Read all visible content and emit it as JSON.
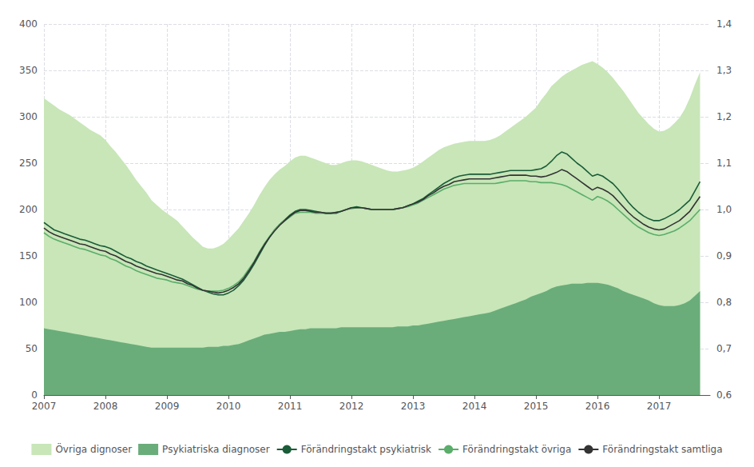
{
  "chart_data": {
    "type": "line",
    "xlim": [
      2007.0,
      2017.83
    ],
    "xticks": [
      2007,
      2008,
      2009,
      2010,
      2011,
      2012,
      2013,
      2014,
      2015,
      2016,
      2017
    ],
    "ylim": [
      0,
      400
    ],
    "yticks": [
      0,
      50,
      100,
      150,
      200,
      250,
      300,
      350,
      400
    ],
    "y2lim": [
      0.6,
      1.4
    ],
    "y2ticks": [
      {
        "value": 0.6,
        "label": "0,6"
      },
      {
        "value": 0.7,
        "label": "0,7"
      },
      {
        "value": 0.8,
        "label": "0,8"
      },
      {
        "value": 0.9,
        "label": "0,9"
      },
      {
        "value": 1.0,
        "label": "1,0"
      },
      {
        "value": 1.1,
        "label": "1,1"
      },
      {
        "value": 1.2,
        "label": "1,2"
      },
      {
        "value": 1.3,
        "label": "1,3"
      },
      {
        "value": 1.4,
        "label": "1,4"
      }
    ],
    "grid": true,
    "legend": "bottom",
    "x": [
      2007.0,
      2007.083,
      2007.167,
      2007.25,
      2007.333,
      2007.417,
      2007.5,
      2007.583,
      2007.667,
      2007.75,
      2007.833,
      2007.917,
      2008.0,
      2008.083,
      2008.167,
      2008.25,
      2008.333,
      2008.417,
      2008.5,
      2008.583,
      2008.667,
      2008.75,
      2008.833,
      2008.917,
      2009.0,
      2009.083,
      2009.167,
      2009.25,
      2009.333,
      2009.417,
      2009.5,
      2009.583,
      2009.667,
      2009.75,
      2009.833,
      2009.917,
      2010.0,
      2010.083,
      2010.167,
      2010.25,
      2010.333,
      2010.417,
      2010.5,
      2010.583,
      2010.667,
      2010.75,
      2010.833,
      2010.917,
      2011.0,
      2011.083,
      2011.167,
      2011.25,
      2011.333,
      2011.417,
      2011.5,
      2011.583,
      2011.667,
      2011.75,
      2011.833,
      2011.917,
      2012.0,
      2012.083,
      2012.167,
      2012.25,
      2012.333,
      2012.417,
      2012.5,
      2012.583,
      2012.667,
      2012.75,
      2012.833,
      2012.917,
      2013.0,
      2013.083,
      2013.167,
      2013.25,
      2013.333,
      2013.417,
      2013.5,
      2013.583,
      2013.667,
      2013.75,
      2013.833,
      2013.917,
      2014.0,
      2014.083,
      2014.167,
      2014.25,
      2014.333,
      2014.417,
      2014.5,
      2014.583,
      2014.667,
      2014.75,
      2014.833,
      2014.917,
      2015.0,
      2015.083,
      2015.167,
      2015.25,
      2015.333,
      2015.417,
      2015.5,
      2015.583,
      2015.667,
      2015.75,
      2015.833,
      2015.917,
      2016.0,
      2016.083,
      2016.167,
      2016.25,
      2016.333,
      2016.417,
      2016.5,
      2016.583,
      2016.667,
      2016.75,
      2016.833,
      2016.917,
      2017.0,
      2017.083,
      2017.167,
      2017.25,
      2017.333,
      2017.417,
      2017.5,
      2017.583,
      2017.667
    ],
    "series": [
      {
        "name": "Övriga dignoser",
        "type": "area",
        "color": "#c8e6b8",
        "values": [
          320,
          316,
          312,
          308,
          305,
          302,
          298,
          294,
          290,
          286,
          283,
          280,
          275,
          268,
          262,
          255,
          248,
          240,
          232,
          225,
          218,
          210,
          205,
          200,
          196,
          192,
          188,
          182,
          176,
          170,
          165,
          160,
          158,
          158,
          160,
          163,
          168,
          174,
          180,
          188,
          196,
          205,
          215,
          224,
          232,
          238,
          243,
          247,
          252,
          256,
          258,
          258,
          256,
          254,
          252,
          250,
          248,
          248,
          250,
          252,
          253,
          253,
          252,
          250,
          248,
          246,
          244,
          242,
          241,
          241,
          242,
          243,
          245,
          248,
          252,
          256,
          260,
          264,
          267,
          269,
          271,
          272,
          273,
          274,
          274,
          274,
          274,
          275,
          277,
          280,
          284,
          288,
          292,
          296,
          300,
          305,
          310,
          318,
          325,
          333,
          338,
          343,
          347,
          350,
          353,
          356,
          358,
          360,
          357,
          353,
          348,
          342,
          335,
          328,
          320,
          312,
          304,
          298,
          292,
          287,
          284,
          285,
          288,
          293,
          299,
          308,
          320,
          335,
          348
        ]
      },
      {
        "name": "Psykiatriska diagnoser",
        "type": "area",
        "color": "#6aad7a",
        "values": [
          72,
          71,
          70,
          69,
          68,
          67,
          66,
          65,
          64,
          63,
          62,
          61,
          60,
          59,
          58,
          57,
          56,
          55,
          54,
          53,
          52,
          51,
          51,
          51,
          51,
          51,
          51,
          51,
          51,
          51,
          51,
          51,
          52,
          52,
          52,
          53,
          53,
          54,
          55,
          57,
          59,
          61,
          63,
          65,
          66,
          67,
          68,
          68,
          69,
          70,
          71,
          71,
          72,
          72,
          72,
          72,
          72,
          72,
          73,
          73,
          73,
          73,
          73,
          73,
          73,
          73,
          73,
          73,
          73,
          74,
          74,
          74,
          75,
          75,
          76,
          77,
          78,
          79,
          80,
          81,
          82,
          83,
          84,
          85,
          86,
          87,
          88,
          89,
          91,
          93,
          95,
          97,
          99,
          101,
          103,
          106,
          108,
          110,
          112,
          115,
          117,
          118,
          119,
          120,
          120,
          120,
          121,
          121,
          121,
          120,
          119,
          117,
          115,
          112,
          110,
          108,
          106,
          104,
          102,
          99,
          97,
          96,
          96,
          96,
          97,
          99,
          102,
          107,
          112
        ]
      },
      {
        "name": "Förändringstakt psykiatrisk",
        "type": "line",
        "color": "#1a5c38",
        "values": [
          186,
          182,
          178,
          176,
          174,
          172,
          170,
          168,
          167,
          165,
          163,
          161,
          160,
          158,
          155,
          152,
          149,
          147,
          144,
          142,
          139,
          137,
          135,
          133,
          131,
          129,
          127,
          125,
          122,
          119,
          116,
          113,
          111,
          109,
          108,
          108,
          110,
          113,
          118,
          124,
          132,
          141,
          151,
          161,
          170,
          178,
          184,
          189,
          194,
          198,
          200,
          200,
          199,
          198,
          197,
          196,
          196,
          196,
          198,
          200,
          202,
          203,
          202,
          201,
          200,
          200,
          200,
          200,
          200,
          201,
          202,
          204,
          206,
          209,
          212,
          216,
          220,
          224,
          228,
          231,
          234,
          236,
          237,
          238,
          238,
          238,
          238,
          238,
          239,
          240,
          241,
          242,
          242,
          242,
          242,
          242,
          243,
          244,
          247,
          252,
          258,
          262,
          260,
          255,
          250,
          246,
          241,
          236,
          238,
          236,
          232,
          228,
          222,
          215,
          208,
          202,
          197,
          193,
          190,
          188,
          188,
          190,
          193,
          196,
          200,
          205,
          210,
          220,
          230
        ]
      },
      {
        "name": "Förändringstakt övriga",
        "type": "line",
        "color": "#5aad6a",
        "values": [
          175,
          171,
          168,
          166,
          164,
          162,
          160,
          158,
          157,
          155,
          153,
          151,
          150,
          147,
          145,
          142,
          139,
          137,
          134,
          132,
          130,
          128,
          126,
          125,
          124,
          122,
          121,
          120,
          118,
          116,
          114,
          113,
          112,
          112,
          112,
          113,
          115,
          118,
          122,
          128,
          136,
          144,
          154,
          163,
          171,
          178,
          184,
          188,
          192,
          196,
          197,
          197,
          197,
          196,
          196,
          196,
          196,
          197,
          198,
          200,
          201,
          202,
          202,
          201,
          200,
          200,
          200,
          200,
          200,
          201,
          202,
          203,
          205,
          207,
          210,
          213,
          216,
          219,
          222,
          224,
          226,
          227,
          228,
          228,
          228,
          228,
          228,
          228,
          228,
          229,
          230,
          231,
          231,
          231,
          231,
          230,
          230,
          229,
          229,
          229,
          228,
          227,
          225,
          222,
          219,
          216,
          213,
          210,
          214,
          212,
          209,
          205,
          200,
          195,
          190,
          185,
          181,
          178,
          175,
          173,
          172,
          173,
          175,
          177,
          180,
          184,
          188,
          194,
          200
        ]
      },
      {
        "name": "Förändringstakt samtliga",
        "type": "line",
        "color": "#333333",
        "values": [
          180,
          176,
          173,
          171,
          169,
          167,
          165,
          163,
          162,
          160,
          158,
          156,
          155,
          152,
          150,
          147,
          144,
          142,
          139,
          137,
          135,
          133,
          131,
          130,
          128,
          126,
          124,
          123,
          120,
          118,
          115,
          113,
          112,
          111,
          110,
          111,
          113,
          116,
          120,
          126,
          134,
          143,
          153,
          162,
          170,
          177,
          183,
          188,
          193,
          197,
          199,
          199,
          198,
          197,
          197,
          196,
          196,
          197,
          198,
          200,
          202,
          202,
          202,
          201,
          200,
          200,
          200,
          200,
          200,
          201,
          202,
          204,
          206,
          208,
          211,
          215,
          218,
          222,
          225,
          227,
          230,
          231,
          232,
          233,
          233,
          233,
          233,
          233,
          234,
          235,
          236,
          237,
          237,
          237,
          237,
          236,
          236,
          235,
          236,
          238,
          240,
          243,
          241,
          237,
          233,
          229,
          225,
          221,
          224,
          222,
          219,
          215,
          209,
          203,
          197,
          192,
          188,
          184,
          181,
          179,
          178,
          179,
          182,
          185,
          188,
          193,
          198,
          206,
          214
        ]
      }
    ]
  }
}
